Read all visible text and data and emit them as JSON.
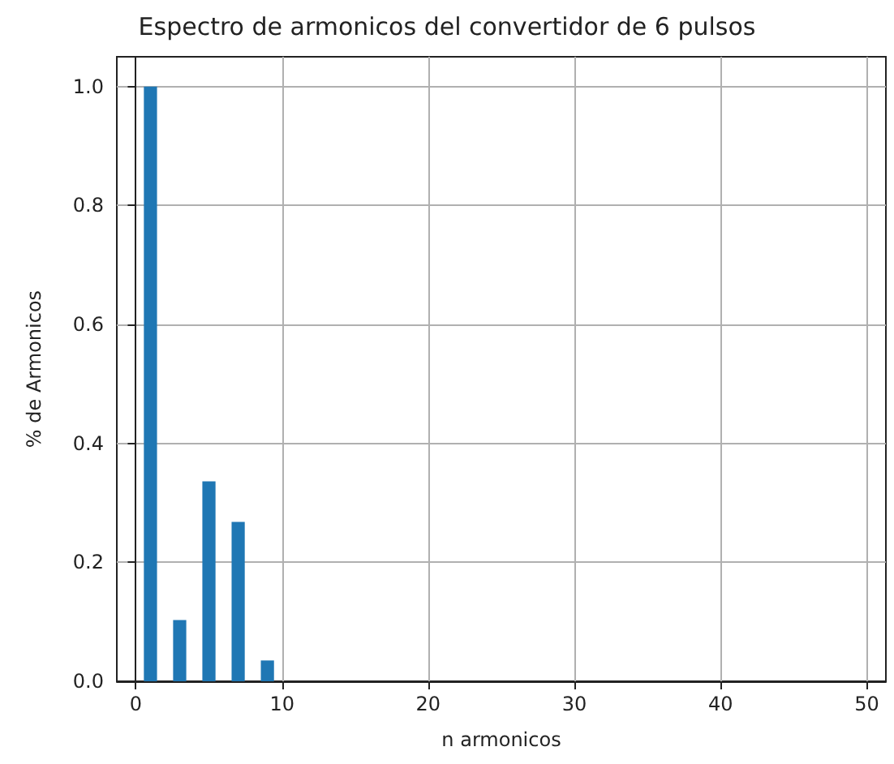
{
  "chart_data": {
    "type": "bar",
    "title": "Espectro de armonicos del convertidor de 6 pulsos",
    "xlabel": "n armonicos",
    "ylabel": "% de Armonicos",
    "x": [
      1,
      3,
      5,
      7,
      9
    ],
    "values": [
      1.0,
      0.103,
      0.336,
      0.268,
      0.035
    ],
    "color": "#1f77b4",
    "xlim": [
      -1.3,
      51.3
    ],
    "xticks": [
      0,
      10,
      20,
      30,
      40,
      50
    ],
    "ylim": [
      0,
      1.05
    ],
    "yticks": [
      {
        "value": 0,
        "label": "0.0"
      },
      0.2,
      0.4,
      0.6,
      0.8,
      {
        "value": 1,
        "label": "1.0"
      }
    ],
    "grid": true
  }
}
